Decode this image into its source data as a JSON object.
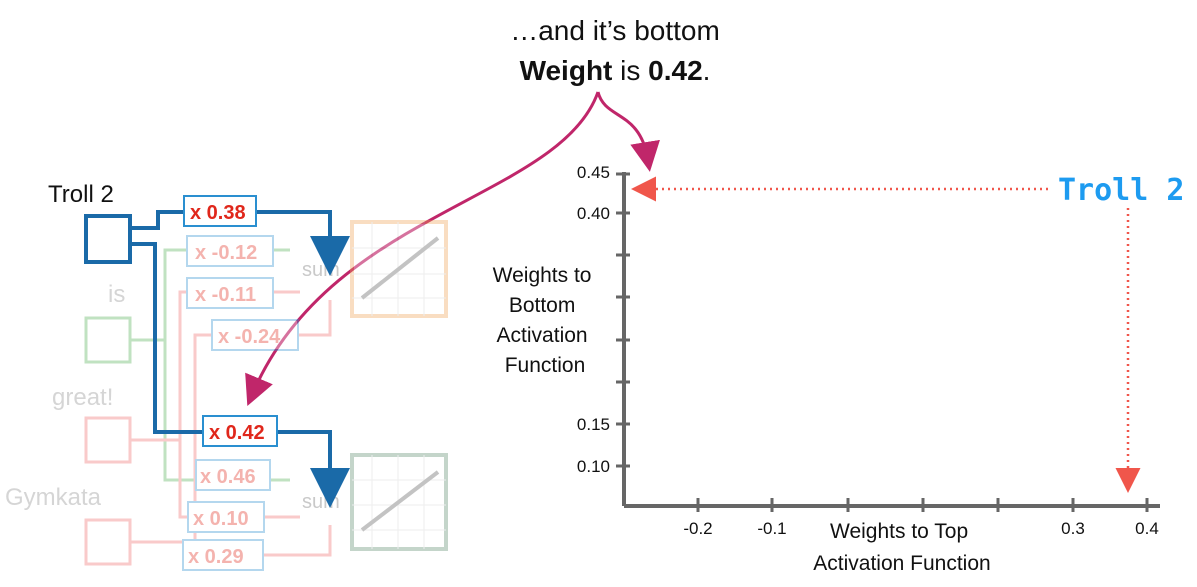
{
  "caption": {
    "line1": "…and it’s bottom",
    "line2_bold_a": "Weight",
    "line2_mid": " is ",
    "line2_bold_b": "0.42",
    "line2_end": "."
  },
  "words": {
    "troll2": "Troll 2",
    "is": "is",
    "great": "great!",
    "gymkata": "Gymkata"
  },
  "weights_top": [
    "x 0.38",
    "x -0.12",
    "x -0.11",
    "x -0.24"
  ],
  "weights_bottom": [
    "x 0.42",
    "x 0.46",
    "x 0.10",
    "x 0.29"
  ],
  "sum_labels": [
    "sum",
    "sum"
  ],
  "chart_data": {
    "type": "scatter",
    "xlabel": "Weights to Top Activation Function",
    "xlabel_lines": [
      "Weights to Top",
      "Activation Function"
    ],
    "ylabel": "Weights to Bottom Activation Function",
    "ylabel_lines": [
      "Weights to",
      "Bottom",
      "Activation",
      "Function"
    ],
    "x_ticks": [
      "-0.2",
      "-0.1",
      "0.3",
      "0.4"
    ],
    "y_ticks": [
      "0.45",
      "0.40",
      "0.15",
      "0.10"
    ],
    "annotation": "Troll 2",
    "point": {
      "x": 0.38,
      "y": 0.42
    }
  },
  "colors": {
    "blue": "#1a6aa8",
    "red_weight": "#e0271b",
    "magenta_arrow": "#c0266a",
    "dotted_red": "#f0564b",
    "troll_label": "#1d9bf0"
  }
}
